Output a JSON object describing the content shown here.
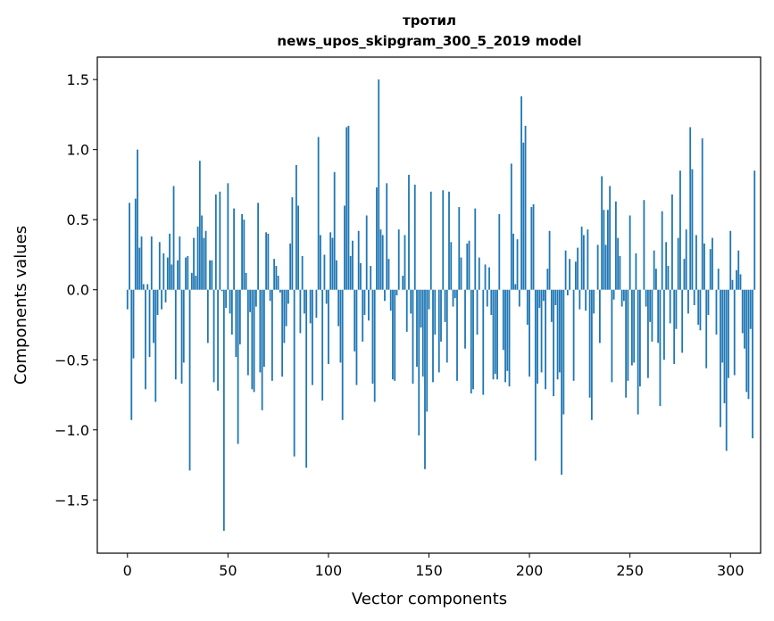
{
  "chart_data": {
    "type": "bar",
    "title_line1": "тротил",
    "title_line2": "news_upos_skipgram_300_5_2019 model",
    "xlabel": "Vector components",
    "ylabel": "Components values",
    "xlim": [
      -15,
      315
    ],
    "ylim": [
      -1.88,
      1.66
    ],
    "bar_color": "#1f77b4",
    "x_ticks": [
      {
        "value": 0,
        "label": "0"
      },
      {
        "value": 50,
        "label": "50"
      },
      {
        "value": 100,
        "label": "100"
      },
      {
        "value": 150,
        "label": "150"
      },
      {
        "value": 200,
        "label": "200"
      },
      {
        "value": 250,
        "label": "250"
      },
      {
        "value": 300,
        "label": "300"
      }
    ],
    "y_ticks": [
      {
        "value": 1.5,
        "label": "1.5"
      },
      {
        "value": 1.0,
        "label": "1.0"
      },
      {
        "value": 0.5,
        "label": "0.5"
      },
      {
        "value": 0.0,
        "label": "0.0"
      },
      {
        "value": -0.5,
        "label": "−0.5"
      },
      {
        "value": -1.0,
        "label": "−1.0"
      },
      {
        "value": -1.5,
        "label": "−1.5"
      }
    ],
    "values": [
      -0.14,
      0.62,
      -0.93,
      -0.49,
      0.65,
      1.0,
      0.3,
      0.38,
      0.04,
      -0.71,
      0.04,
      -0.48,
      0.38,
      -0.38,
      -0.8,
      -0.18,
      0.34,
      -0.14,
      0.26,
      -0.09,
      0.23,
      0.4,
      0.18,
      0.74,
      -0.64,
      0.21,
      0.38,
      -0.67,
      -0.52,
      0.23,
      0.24,
      -1.29,
      0.12,
      0.37,
      0.1,
      0.45,
      0.92,
      0.53,
      0.37,
      0.42,
      -0.38,
      0.21,
      0.21,
      -0.66,
      0.68,
      -0.72,
      0.7,
      -0.01,
      -1.72,
      -0.13,
      0.76,
      -0.17,
      -0.32,
      0.58,
      -0.48,
      -1.1,
      -0.39,
      0.54,
      0.5,
      0.12,
      -0.61,
      -0.16,
      -0.71,
      -0.73,
      -0.12,
      0.62,
      -0.59,
      -0.86,
      -0.55,
      0.41,
      0.4,
      -0.08,
      -0.65,
      0.22,
      0.17,
      0.1,
      -0.02,
      -0.62,
      -0.38,
      -0.26,
      -0.1,
      0.33,
      0.66,
      -1.19,
      0.89,
      0.6,
      -0.31,
      0.24,
      -0.17,
      -1.27,
      0.0,
      -0.24,
      -0.68,
      0.0,
      -0.2,
      1.09,
      0.39,
      -0.79,
      0.25,
      -0.1,
      -0.53,
      0.41,
      0.37,
      0.84,
      0.21,
      -0.26,
      -0.52,
      -0.93,
      0.6,
      1.16,
      1.17,
      0.24,
      0.35,
      -0.44,
      -0.68,
      0.42,
      0.19,
      -0.37,
      -0.18,
      0.53,
      -0.22,
      0.17,
      -0.67,
      -0.8,
      0.73,
      1.5,
      0.43,
      0.39,
      -0.08,
      0.76,
      0.22,
      -0.15,
      -0.64,
      -0.65,
      -0.04,
      0.43,
      0.0,
      0.1,
      0.39,
      -0.3,
      0.82,
      -0.17,
      -0.67,
      0.75,
      -0.55,
      -1.04,
      -0.27,
      -0.62,
      -1.28,
      -0.87,
      -0.14,
      0.7,
      -0.66,
      -0.32,
      0.0,
      -0.59,
      -0.37,
      0.71,
      -0.23,
      -0.52,
      0.7,
      0.34,
      -0.12,
      -0.06,
      -0.65,
      0.59,
      0.23,
      0.0,
      -0.42,
      0.33,
      0.35,
      -0.74,
      -0.71,
      0.58,
      -0.32,
      0.23,
      0.0,
      -0.75,
      0.18,
      -0.12,
      0.16,
      -0.18,
      -0.64,
      -0.6,
      -0.64,
      0.54,
      0.0,
      -0.43,
      -0.66,
      -0.58,
      -0.69,
      0.9,
      0.4,
      0.04,
      0.36,
      -0.12,
      1.38,
      1.05,
      1.17,
      -0.25,
      -0.62,
      0.59,
      0.61,
      -1.22,
      -0.67,
      -0.13,
      -0.59,
      -0.08,
      -0.71,
      0.15,
      0.42,
      -0.23,
      -0.76,
      -0.11,
      -0.64,
      -0.59,
      -1.32,
      -0.89,
      0.28,
      -0.04,
      0.22,
      0.0,
      -0.65,
      0.2,
      0.3,
      -0.14,
      0.45,
      0.39,
      -0.15,
      0.43,
      -0.77,
      -0.93,
      -0.17,
      0.0,
      0.32,
      -0.38,
      0.81,
      0.57,
      0.32,
      0.57,
      0.74,
      -0.66,
      -0.07,
      0.63,
      0.37,
      0.24,
      -0.12,
      -0.08,
      -0.77,
      -0.65,
      0.53,
      -0.54,
      -0.52,
      0.26,
      -0.89,
      -0.69,
      0.0,
      0.64,
      -0.12,
      -0.63,
      -0.23,
      -0.37,
      0.28,
      0.15,
      -0.38,
      -0.83,
      0.56,
      -0.5,
      0.34,
      0.17,
      -0.24,
      0.68,
      -0.53,
      -0.28,
      0.37,
      0.85,
      -0.45,
      0.22,
      0.43,
      -0.17,
      1.16,
      0.86,
      -0.11,
      0.39,
      -0.25,
      -0.29,
      1.08,
      0.33,
      -0.56,
      -0.18,
      0.29,
      0.37,
      0.0,
      -0.32,
      0.15,
      -0.98,
      -0.52,
      -0.81,
      -1.15,
      -0.63,
      0.42,
      0.07,
      -0.61,
      0.14,
      0.28,
      0.11,
      -0.31,
      -0.42,
      -0.73,
      -0.78,
      -0.28,
      -1.06,
      0.85
    ]
  }
}
